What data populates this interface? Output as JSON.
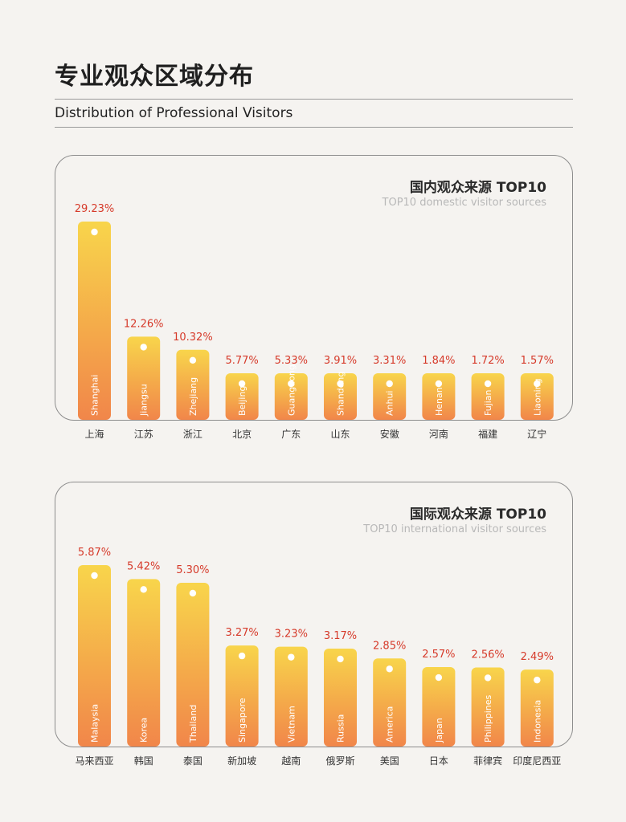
{
  "header": {
    "title": "专业观众区域分布",
    "subtitle": "Distribution of Professional Visitors"
  },
  "domestic": {
    "title": "国内观众来源 TOP10",
    "subtitle": "TOP10 domestic visitor sources"
  },
  "international": {
    "title": "国际观众来源 TOP10",
    "subtitle": "TOP10 international visitor sources"
  },
  "colors": {
    "bar_top": "#f8d54b",
    "bar_bottom": "#f1864a",
    "value_label": "#d63a2a"
  },
  "chart_data": [
    {
      "type": "bar",
      "title": "国内观众来源 TOP10",
      "categories": [
        "上海",
        "江苏",
        "浙江",
        "北京",
        "广东",
        "山东",
        "安徽",
        "河南",
        "福建",
        "辽宁"
      ],
      "bar_labels": [
        "Shanghai",
        "Jiangsu",
        "Zhejiang",
        "Beijing",
        "Guangdong",
        "Shandong",
        "Anhui",
        "Henan",
        "Fujian",
        "Liaoning"
      ],
      "values": [
        29.23,
        12.26,
        10.32,
        5.77,
        5.33,
        3.91,
        3.31,
        1.84,
        1.72,
        1.57
      ],
      "value_labels": [
        "29.23%",
        "12.26%",
        "10.32%",
        "5.77%",
        "5.33%",
        "3.91%",
        "3.31%",
        "1.84%",
        "1.72%",
        "1.57%"
      ]
    },
    {
      "type": "bar",
      "title": "国际观众来源 TOP10",
      "categories": [
        "马来西亚",
        "韩国",
        "泰国",
        "新加坡",
        "越南",
        "俄罗斯",
        "美国",
        "日本",
        "菲律宾",
        "印度尼西亚"
      ],
      "bar_labels": [
        "Malaysia",
        "Korea",
        "Thailand",
        "Singapore",
        "Vietnam",
        "Russia",
        "America",
        "Japan",
        "Philippines",
        "Indonesia"
      ],
      "values": [
        5.87,
        5.42,
        5.3,
        3.27,
        3.23,
        3.17,
        2.85,
        2.57,
        2.56,
        2.49
      ],
      "value_labels": [
        "5.87%",
        "5.42%",
        "5.30%",
        "3.27%",
        "3.23%",
        "3.17%",
        "2.85%",
        "2.57%",
        "2.56%",
        "2.49%"
      ]
    }
  ]
}
